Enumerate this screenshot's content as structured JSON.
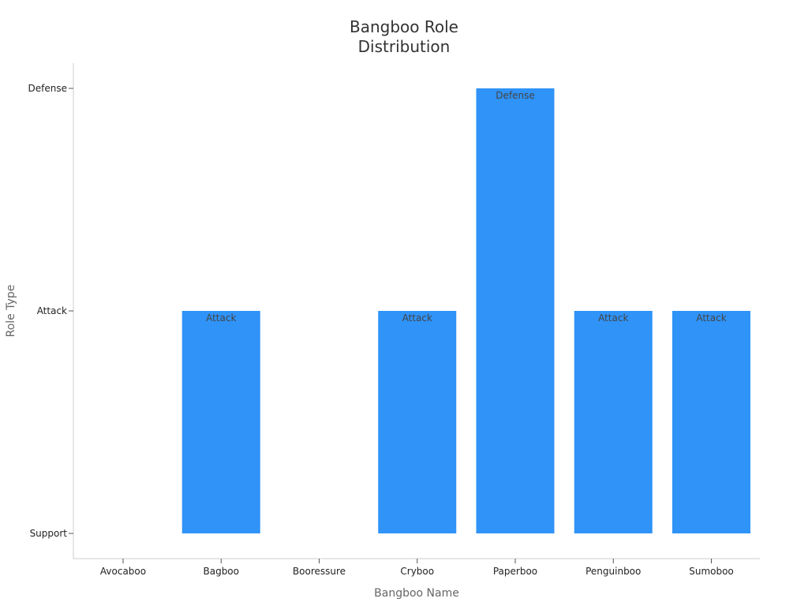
{
  "chart_data": {
    "type": "bar",
    "title_lines": [
      "Bangboo Role",
      "Distribution"
    ],
    "xlabel": "Bangboo Name",
    "ylabel": "Role Type",
    "categories": [
      "Avocaboo",
      "Bagboo",
      "Booressure",
      "Cryboo",
      "Paperboo",
      "Penguinboo",
      "Sumoboo"
    ],
    "y_categories": [
      "Support",
      "Attack",
      "Defense"
    ],
    "values": [
      null,
      "Attack",
      null,
      "Attack",
      "Defense",
      "Attack",
      "Attack"
    ],
    "data_labels": [
      "",
      "Attack",
      "",
      "Attack",
      "Defense",
      "Attack",
      "Attack"
    ],
    "bar_color": "#2f93f8",
    "grid": false,
    "legend": "none"
  }
}
